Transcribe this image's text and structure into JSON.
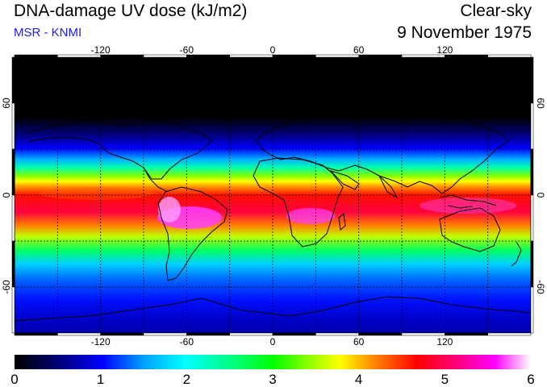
{
  "header": {
    "title": "DNA-damage UV dose (kJ/m2)",
    "subtitle": "MSR - KNMI",
    "condition": "Clear-sky",
    "date": "9 November 1975"
  },
  "map": {
    "projection": "equirectangular",
    "lon_range": [
      -180,
      180
    ],
    "lat_range": [
      -90,
      90
    ],
    "lon_ticks": [
      -120,
      -60,
      0,
      60,
      120
    ],
    "lat_ticks": [
      60,
      0,
      -60
    ],
    "lon_tick_labels": [
      "-120",
      "-60",
      "0",
      "60",
      "120"
    ],
    "lat_tick_labels": [
      "60",
      "0",
      "-60"
    ],
    "grid": "dashed every 30 degrees",
    "coastlines": true
  },
  "colorbar": {
    "min": 0,
    "max": 6,
    "ticks": [
      "0",
      "1",
      "2",
      "3",
      "4",
      "5",
      "6"
    ],
    "colors": [
      "#000000",
      "#000070",
      "#0000ff",
      "#00a0ff",
      "#00ffff",
      "#00ff80",
      "#00ff00",
      "#a0ff00",
      "#ffff00",
      "#ff8000",
      "#ff0000",
      "#ff0080",
      "#ff00ff",
      "#ffffff"
    ]
  }
}
